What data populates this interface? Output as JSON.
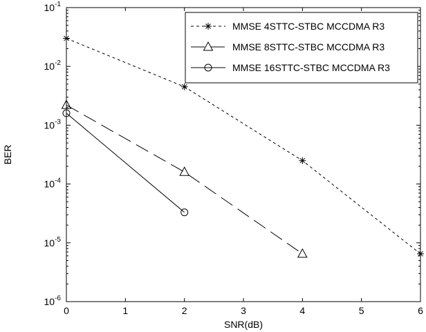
{
  "chart_data": {
    "type": "line",
    "title": "",
    "xlabel": "SNR(dB)",
    "ylabel": "BER",
    "xlim": [
      0,
      6
    ],
    "ylim": [
      1e-06,
      0.1
    ],
    "yscale": "log",
    "grid": false,
    "legend_position": "top-right",
    "x_ticks": [
      "0",
      "1",
      "2",
      "3",
      "4",
      "5",
      "6"
    ],
    "y_ticks": [
      {
        "base": "10",
        "exp": "-6"
      },
      {
        "base": "10",
        "exp": "-5"
      },
      {
        "base": "10",
        "exp": "-4"
      },
      {
        "base": "10",
        "exp": "-3"
      },
      {
        "base": "10",
        "exp": "-2"
      },
      {
        "base": "10",
        "exp": "-1"
      }
    ],
    "series": [
      {
        "name": "MMSE 4STTC-STBC MCCDMA R3",
        "marker": "star",
        "line_style": "dotted",
        "x": [
          0,
          2,
          4,
          6
        ],
        "y": [
          0.03,
          0.0045,
          0.00025,
          6.5e-06
        ]
      },
      {
        "name": "MMSE 8STTC-STBC MCCDMA R3",
        "marker": "triangle",
        "line_style": "dashed",
        "x": [
          0,
          2,
          4
        ],
        "y": [
          0.0022,
          0.00016,
          6.5e-06
        ]
      },
      {
        "name": "MMSE 16STTC-STBC MCCDMA R3",
        "marker": "circle",
        "line_style": "solid",
        "x": [
          0,
          2
        ],
        "y": [
          0.0016,
          3.3e-05
        ]
      }
    ]
  }
}
